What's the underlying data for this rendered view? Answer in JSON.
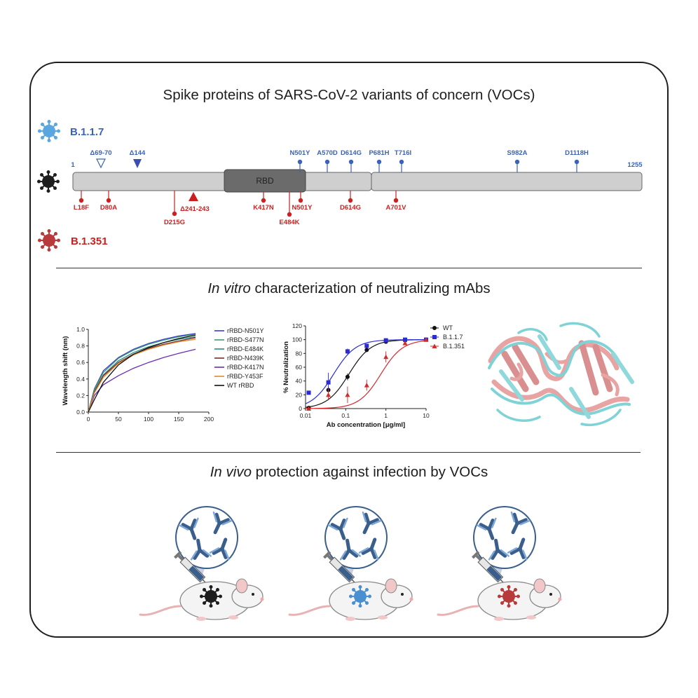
{
  "titles": {
    "spike": "Spike proteins of SARS-CoV-2 variants of concern (VOCs)",
    "invitro_em": "In vitro",
    "invitro_rest": " characterization of neutralizing mAbs",
    "invivo_em": "In vivo",
    "invivo_rest": " protection against infection by VOCs"
  },
  "variants": {
    "top": {
      "name": "B.1.1.7",
      "color": "#3b63b5"
    },
    "bottom": {
      "name": "B.1.351",
      "color": "#cc1f1f"
    },
    "wild": {
      "color": "#1e1e1e"
    }
  },
  "spike": {
    "start": "1",
    "end": "1255",
    "domain": "RBD",
    "top_mutations": [
      "Δ69-70",
      "Δ144",
      "N501Y",
      "A570D",
      "D614G",
      "P681H",
      "T716I",
      "S982A",
      "D1118H"
    ],
    "bottom_mutations": [
      "L18F",
      "D80A",
      "D215G",
      "Δ241-243",
      "K417N",
      "E484K",
      "N501Y",
      "D614G",
      "A701V"
    ]
  },
  "charts": {
    "binding": {
      "ylabel": "Wavelength shift (nm)",
      "x_ticks": [
        "0",
        "50",
        "100",
        "150",
        "200"
      ],
      "y_ticks": [
        "0.0",
        "0.2",
        "0.4",
        "0.6",
        "0.8",
        "1.0"
      ],
      "series_names": [
        "rRBD-N501Y",
        "rRBD-S477N",
        "rRBD-E484K",
        "rRBD-N439K",
        "rRBD-K417N",
        "rRBD-Y453F",
        "WT rRBD"
      ]
    },
    "neutralization": {
      "ylabel": "% Neutralization",
      "xlabel": "Ab concentration [μg/ml]",
      "x_ticks": [
        "0.01",
        "0.1",
        "1",
        "10"
      ],
      "y_ticks": [
        "0",
        "20",
        "40",
        "60",
        "80",
        "100",
        "120"
      ],
      "series_names": [
        "WT",
        "B.1.1.7",
        "B.1.351"
      ]
    }
  },
  "chart_data": [
    {
      "type": "line",
      "ylabel": "Wavelength shift (nm)",
      "xlim": [
        0,
        200
      ],
      "ylim": [
        0,
        1.0
      ],
      "series": [
        {
          "name": "rRBD-N501Y",
          "color": "#3a3ad6",
          "x": [
            0,
            10,
            25,
            50,
            75,
            100,
            125,
            150,
            178
          ],
          "y": [
            0,
            0.28,
            0.5,
            0.66,
            0.76,
            0.83,
            0.88,
            0.92,
            0.95
          ]
        },
        {
          "name": "rRBD-S477N",
          "color": "#3c9b6b",
          "x": [
            0,
            10,
            25,
            50,
            75,
            100,
            125,
            150,
            178
          ],
          "y": [
            0,
            0.27,
            0.48,
            0.65,
            0.75,
            0.82,
            0.87,
            0.91,
            0.94
          ]
        },
        {
          "name": "rRBD-E484K",
          "color": "#2a8a85",
          "x": [
            0,
            10,
            25,
            50,
            75,
            100,
            125,
            150,
            178
          ],
          "y": [
            0,
            0.25,
            0.45,
            0.62,
            0.72,
            0.79,
            0.84,
            0.88,
            0.91
          ]
        },
        {
          "name": "rRBD-N439K",
          "color": "#7a2a2a",
          "x": [
            0,
            10,
            25,
            50,
            75,
            100,
            125,
            150,
            178
          ],
          "y": [
            0,
            0.24,
            0.44,
            0.6,
            0.7,
            0.77,
            0.82,
            0.86,
            0.9
          ]
        },
        {
          "name": "rRBD-K417N",
          "color": "#6a2cb0",
          "x": [
            0,
            10,
            25,
            50,
            75,
            100,
            125,
            150,
            178
          ],
          "y": [
            0,
            0.2,
            0.33,
            0.44,
            0.53,
            0.6,
            0.66,
            0.71,
            0.76
          ]
        },
        {
          "name": "rRBD-Y453F",
          "color": "#e08a2a",
          "x": [
            0,
            10,
            25,
            50,
            75,
            100,
            125,
            150,
            178
          ],
          "y": [
            0,
            0.23,
            0.42,
            0.59,
            0.69,
            0.76,
            0.81,
            0.85,
            0.88
          ]
        },
        {
          "name": "WT rRBD",
          "color": "#111111",
          "x": [
            0,
            10,
            25,
            50,
            75,
            100,
            125,
            150,
            178
          ],
          "y": [
            0,
            0.15,
            0.36,
            0.57,
            0.7,
            0.78,
            0.84,
            0.89,
            0.93
          ]
        }
      ]
    },
    {
      "type": "scatter",
      "ylabel": "% Neutralization",
      "xlabel": "Ab concentration [μg/ml]",
      "xscale": "log",
      "xlim": [
        0.01,
        10
      ],
      "ylim": [
        0,
        120
      ],
      "series": [
        {
          "name": "WT",
          "color": "#111111",
          "marker": "circle",
          "x": [
            0.012,
            0.037,
            0.111,
            0.333,
            1,
            3,
            10
          ],
          "y": [
            1,
            27,
            46,
            85,
            97,
            99,
            100
          ],
          "err": [
            1,
            5,
            5,
            3,
            2,
            1,
            1
          ],
          "ec50": 0.12
        },
        {
          "name": "B.1.1.7",
          "color": "#2b2bd6",
          "marker": "square",
          "x": [
            0.012,
            0.037,
            0.111,
            0.333,
            1,
            3,
            10
          ],
          "y": [
            23,
            38,
            83,
            91,
            99,
            100,
            100
          ],
          "err": [
            2,
            14,
            4,
            3,
            1,
            1,
            1
          ],
          "ec50": 0.05
        },
        {
          "name": "B.1.351",
          "color": "#d32a2a",
          "marker": "triangle",
          "x": [
            0.012,
            0.037,
            0.111,
            0.333,
            1,
            3,
            10
          ],
          "y": [
            0,
            20,
            20,
            34,
            75,
            95,
            100
          ],
          "err": [
            1,
            8,
            12,
            8,
            8,
            2,
            1
          ],
          "ec50": 0.75
        }
      ]
    }
  ]
}
